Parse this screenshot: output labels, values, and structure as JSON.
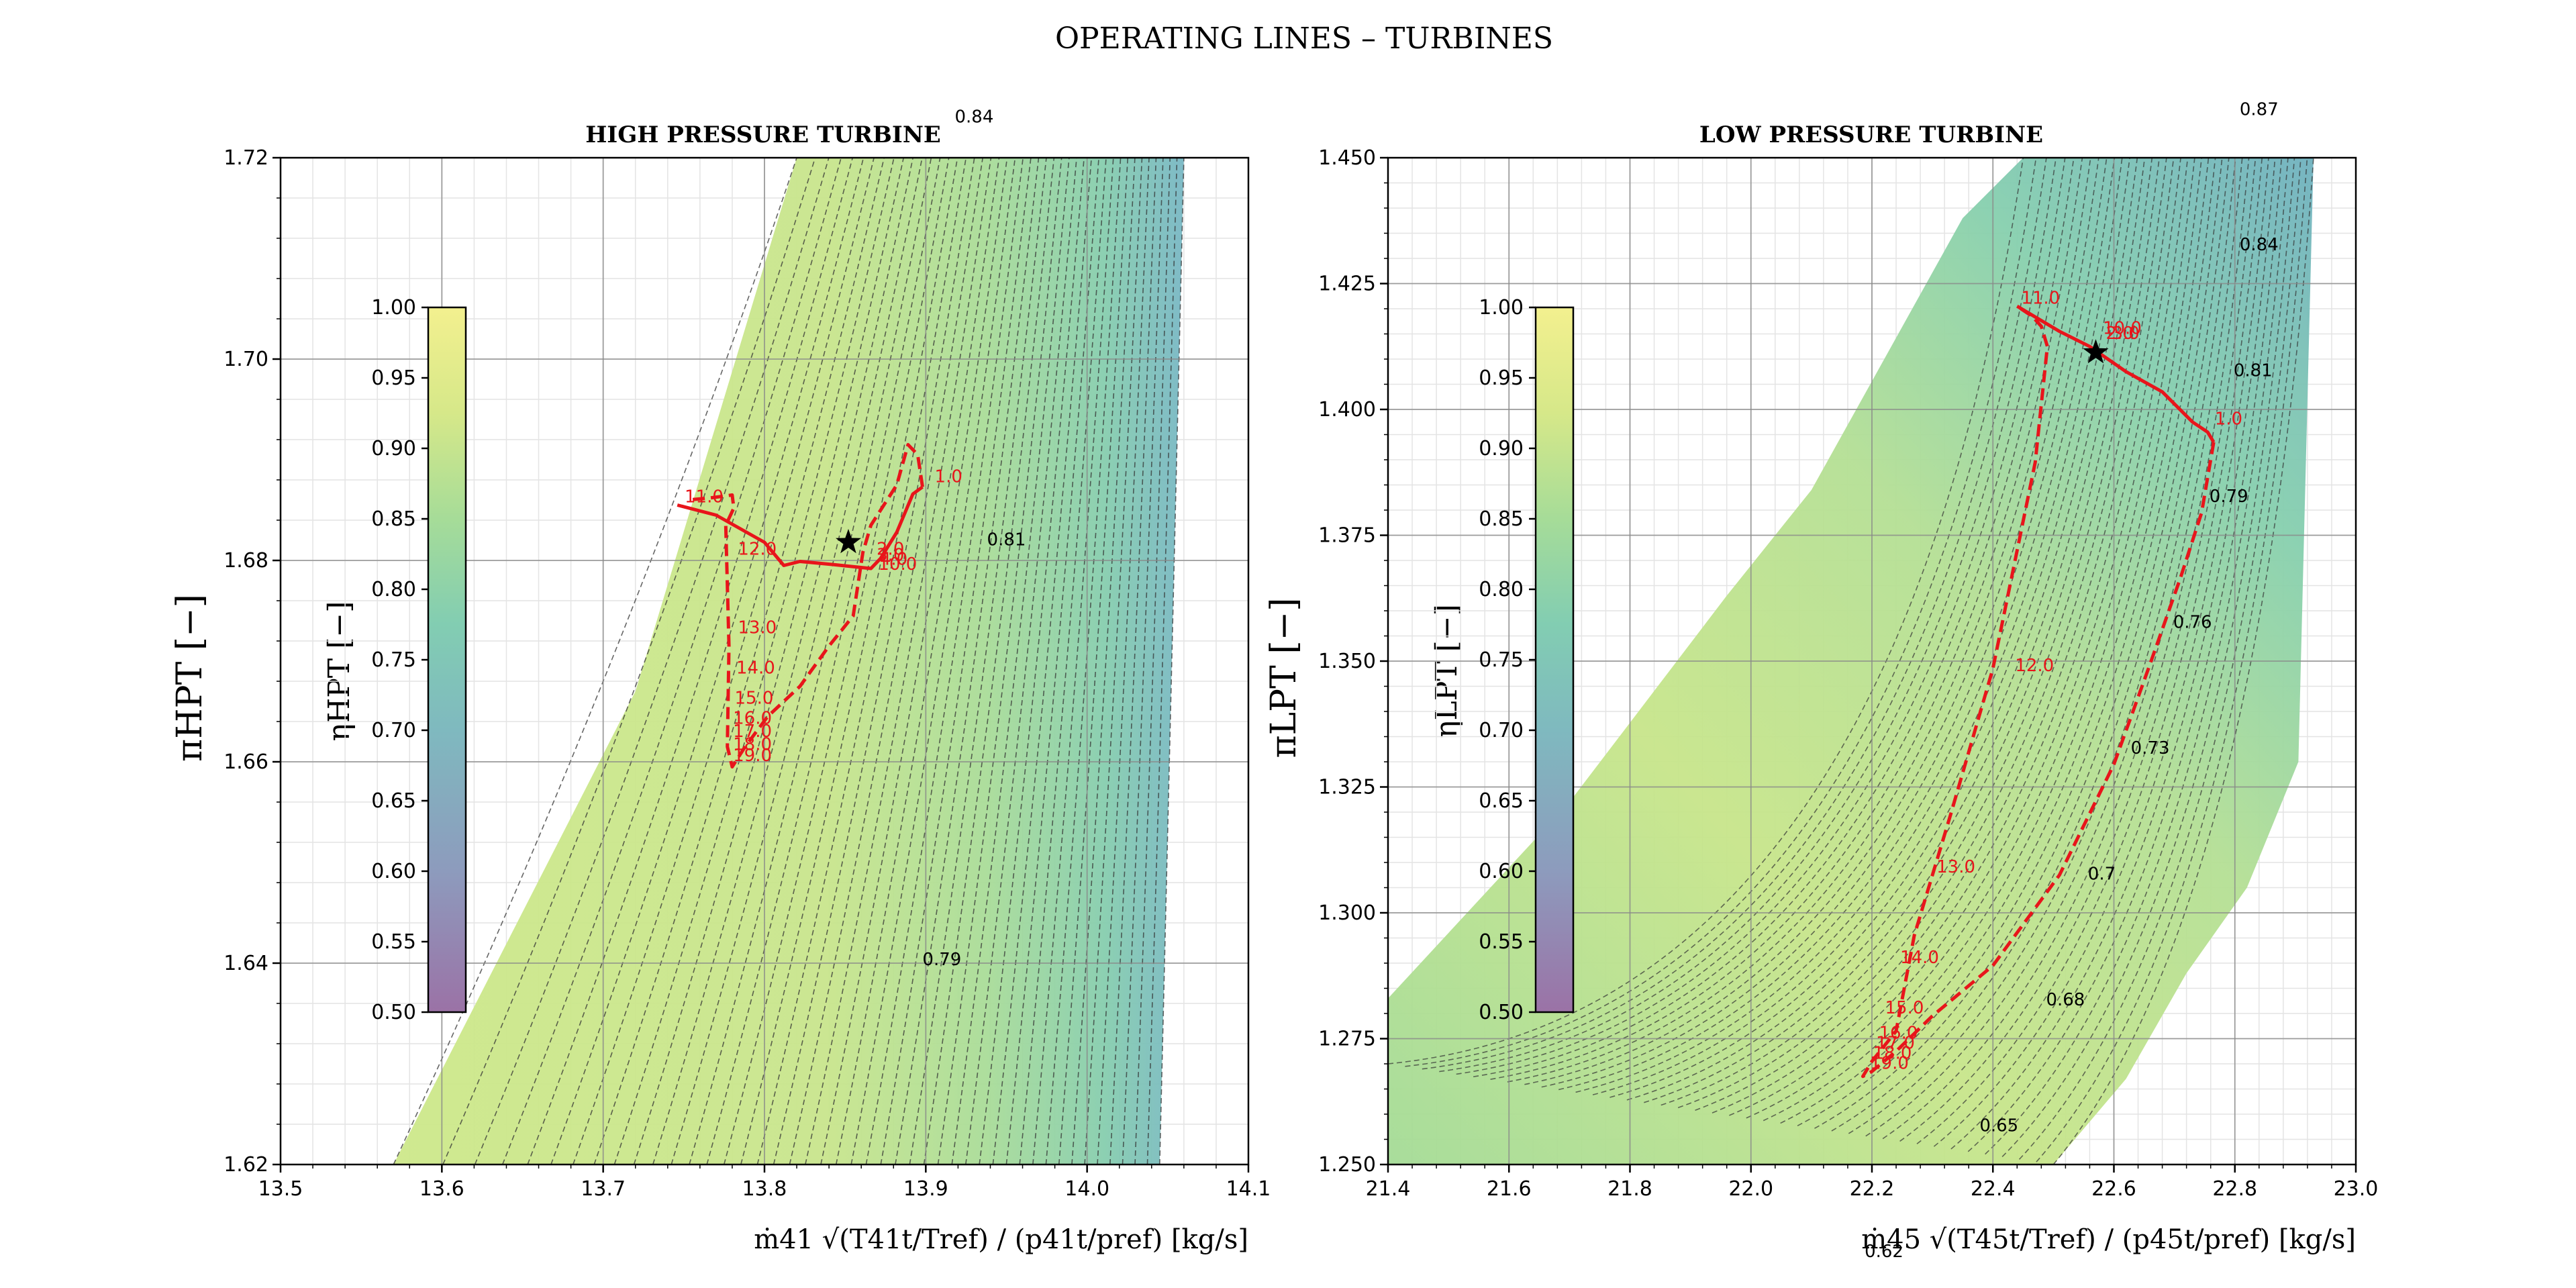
{
  "figure": {
    "suptitle": "OPERATING LINES  –  TURBINES"
  },
  "colors": {
    "line": "#e8151b",
    "marker": "#000000",
    "contour": "#333333",
    "colormap": [
      "#9b72a6",
      "#8d9bbd",
      "#7fb9bf",
      "#82cdb2",
      "#a6dc98",
      "#d6e889",
      "#f3f08f"
    ]
  },
  "chart_data": [
    {
      "type": "line",
      "title": "HIGH PRESSURE TURBINE",
      "xlabel": "ṁ41 √(T41t/Tref) / (p41t/pref)   [kg/s]",
      "ylabel": "πHPT [−]",
      "colorbar_label": "ηHPT [−]",
      "colorbar_ticks": [
        "0.50",
        "0.55",
        "0.60",
        "0.65",
        "0.70",
        "0.75",
        "0.80",
        "0.85",
        "0.90",
        "0.95",
        "1.00"
      ],
      "colorbar_range": [
        0.5,
        1.0
      ],
      "xlim": [
        13.5,
        14.1
      ],
      "ylim": [
        1.62,
        1.72
      ],
      "xticks": [
        "13.5",
        "13.6",
        "13.7",
        "13.8",
        "13.9",
        "14.0",
        "14.1"
      ],
      "yticks": [
        "1.62",
        "1.64",
        "1.66",
        "1.68",
        "1.70",
        "1.72"
      ],
      "grid": true,
      "efficiency_labels": [
        {
          "text": "0.84",
          "x": 13.93,
          "y": 1.7235
        },
        {
          "text": "0.81",
          "x": 13.95,
          "y": 1.6815
        },
        {
          "text": "0.79",
          "x": 13.91,
          "y": 1.6398
        }
      ],
      "map_region": [
        [
          13.57,
          1.62
        ],
        [
          13.72,
          1.667
        ],
        [
          13.82,
          1.72
        ],
        [
          14.06,
          1.72
        ],
        [
          14.045,
          1.62
        ]
      ],
      "series": [
        {
          "style": "solid",
          "points": [
            [
              13.746,
              1.6855
            ],
            [
              13.77,
              1.6845
            ],
            [
              13.8,
              1.6818
            ],
            [
              13.812,
              1.6795
            ],
            [
              13.822,
              1.6799
            ],
            [
              13.842,
              1.6796
            ],
            [
              13.866,
              1.6792
            ],
            [
              13.872,
              1.6802
            ],
            [
              13.882,
              1.6828
            ],
            [
              13.892,
              1.6866
            ],
            [
              13.898,
              1.6873
            ]
          ]
        },
        {
          "style": "dashed",
          "points": [
            [
              13.898,
              1.6873
            ],
            [
              13.895,
              1.6905
            ],
            [
              13.889,
              1.6915
            ],
            [
              13.882,
              1.6875
            ],
            [
              13.866,
              1.6835
            ],
            [
              13.861,
              1.6808
            ],
            [
              13.855,
              1.6745
            ],
            [
              13.84,
              1.6715
            ],
            [
              13.822,
              1.6675
            ],
            [
              13.802,
              1.6645
            ],
            [
              13.788,
              1.6615
            ],
            [
              13.78,
              1.6595
            ],
            [
              13.777,
              1.6615
            ],
            [
              13.778,
              1.6715
            ],
            [
              13.776,
              1.6835
            ],
            [
              13.781,
              1.6852
            ],
            [
              13.78,
              1.6865
            ],
            [
              13.766,
              1.6862
            ],
            [
              13.752,
              1.686
            ]
          ]
        }
      ],
      "point_labels": [
        {
          "text": "1.0",
          "x": 13.903,
          "y": 1.6875
        },
        {
          "text": "11.0",
          "x": 13.748,
          "y": 1.6855
        },
        {
          "text": "12.0",
          "x": 13.781,
          "y": 1.6803
        },
        {
          "text": "13.0",
          "x": 13.781,
          "y": 1.6725
        },
        {
          "text": "14.0",
          "x": 13.78,
          "y": 1.6685
        },
        {
          "text": "15.0",
          "x": 13.779,
          "y": 1.6655
        },
        {
          "text": "16.0",
          "x": 13.778,
          "y": 1.6635
        },
        {
          "text": "17.0",
          "x": 13.778,
          "y": 1.6622
        },
        {
          "text": "18.0",
          "x": 13.778,
          "y": 1.6609
        },
        {
          "text": "19.0",
          "x": 13.778,
          "y": 1.6598
        },
        {
          "text": "2.0",
          "x": 13.867,
          "y": 1.6803
        },
        {
          "text": "3.0",
          "x": 13.867,
          "y": 1.6797
        },
        {
          "text": "4.0",
          "x": 13.869,
          "y": 1.6793
        },
        {
          "text": "10.0",
          "x": 13.868,
          "y": 1.6788
        }
      ],
      "design_point": {
        "x": 13.852,
        "y": 1.6818
      }
    },
    {
      "type": "line",
      "title": "LOW PRESSURE TURBINE",
      "xlabel": "ṁ45 √(T45t/Tref) / (p45t/pref)   [kg/s]",
      "ylabel": "πLPT [−]",
      "colorbar_label": "ηLPT [−]",
      "colorbar_ticks": [
        "0.50",
        "0.55",
        "0.60",
        "0.65",
        "0.70",
        "0.75",
        "0.80",
        "0.85",
        "0.90",
        "0.95",
        "1.00"
      ],
      "colorbar_range": [
        0.5,
        1.0
      ],
      "xlim": [
        21.4,
        23.0
      ],
      "ylim": [
        1.25,
        1.45
      ],
      "xticks": [
        "21.4",
        "21.6",
        "21.8",
        "22.0",
        "22.2",
        "22.4",
        "22.6",
        "22.8",
        "23.0"
      ],
      "yticks": [
        "1.250",
        "1.275",
        "1.300",
        "1.325",
        "1.350",
        "1.375",
        "1.400",
        "1.425",
        "1.450"
      ],
      "grid": true,
      "efficiency_labels": [
        {
          "text": "0.87",
          "x": 22.84,
          "y": 1.4585
        },
        {
          "text": "0.84",
          "x": 22.84,
          "y": 1.4316
        },
        {
          "text": "0.81",
          "x": 22.83,
          "y": 1.4066
        },
        {
          "text": "0.79",
          "x": 22.79,
          "y": 1.3816
        },
        {
          "text": "0.76",
          "x": 22.73,
          "y": 1.3566
        },
        {
          "text": "0.73",
          "x": 22.66,
          "y": 1.3316
        },
        {
          "text": "0.7",
          "x": 22.58,
          "y": 1.3066
        },
        {
          "text": "0.68",
          "x": 22.52,
          "y": 1.2816
        },
        {
          "text": "0.65",
          "x": 22.41,
          "y": 1.2566
        },
        {
          "text": "0.62",
          "x": 22.22,
          "y": 1.2316
        }
      ],
      "map_region": [
        [
          21.4,
          1.25
        ],
        [
          21.4,
          1.283
        ],
        [
          21.7,
          1.322
        ],
        [
          21.96,
          1.363
        ],
        [
          22.1,
          1.384
        ],
        [
          22.35,
          1.438
        ],
        [
          22.45,
          1.45
        ],
        [
          22.93,
          1.45
        ],
        [
          22.905,
          1.33
        ],
        [
          22.82,
          1.305
        ],
        [
          22.72,
          1.288
        ],
        [
          22.62,
          1.267
        ],
        [
          22.5,
          1.25
        ]
      ],
      "series": [
        {
          "style": "solid",
          "points": [
            [
              22.44,
              1.4205
            ],
            [
              22.51,
              1.4155
            ],
            [
              22.56,
              1.4125
            ],
            [
              22.62,
              1.4075
            ],
            [
              22.68,
              1.4035
            ],
            [
              22.73,
              1.3975
            ],
            [
              22.755,
              1.3955
            ],
            [
              22.765,
              1.3935
            ]
          ]
        },
        {
          "style": "dashed",
          "points": [
            [
              22.765,
              1.3935
            ],
            [
              22.745,
              1.3795
            ],
            [
              22.71,
              1.3665
            ],
            [
              22.66,
              1.3495
            ],
            [
              22.6,
              1.3295
            ],
            [
              22.51,
              1.3075
            ],
            [
              22.4,
              1.2895
            ],
            [
              22.3,
              1.2795
            ],
            [
              22.24,
              1.2725
            ],
            [
              22.2,
              1.2685
            ],
            [
              22.185,
              1.2675
            ],
            [
              22.2,
              1.2705
            ],
            [
              22.24,
              1.2765
            ],
            [
              22.27,
              1.2955
            ],
            [
              22.33,
              1.3195
            ],
            [
              22.4,
              1.3485
            ],
            [
              22.47,
              1.3895
            ],
            [
              22.49,
              1.4125
            ],
            [
              22.48,
              1.4165
            ],
            [
              22.465,
              1.4185
            ],
            [
              22.44,
              1.4205
            ]
          ]
        }
      ],
      "point_labels": [
        {
          "text": "1.0",
          "x": 22.76,
          "y": 1.3965
        },
        {
          "text": "11.0",
          "x": 22.44,
          "y": 1.4205
        },
        {
          "text": "12.0",
          "x": 22.43,
          "y": 1.3475
        },
        {
          "text": "13.0",
          "x": 22.3,
          "y": 1.3075
        },
        {
          "text": "14.0",
          "x": 22.24,
          "y": 1.2895
        },
        {
          "text": "15.0",
          "x": 22.215,
          "y": 1.2795
        },
        {
          "text": "16.0",
          "x": 22.205,
          "y": 1.2745
        },
        {
          "text": "17.0",
          "x": 22.2,
          "y": 1.2725
        },
        {
          "text": "18.0",
          "x": 22.195,
          "y": 1.2705
        },
        {
          "text": "19.0",
          "x": 22.19,
          "y": 1.2685
        },
        {
          "text": "2.0",
          "x": 22.58,
          "y": 1.4135
        },
        {
          "text": "3.0",
          "x": 22.59,
          "y": 1.4135
        },
        {
          "text": "10.0",
          "x": 22.575,
          "y": 1.4145
        }
      ],
      "design_point": {
        "x": 22.57,
        "y": 1.4113
      }
    }
  ]
}
